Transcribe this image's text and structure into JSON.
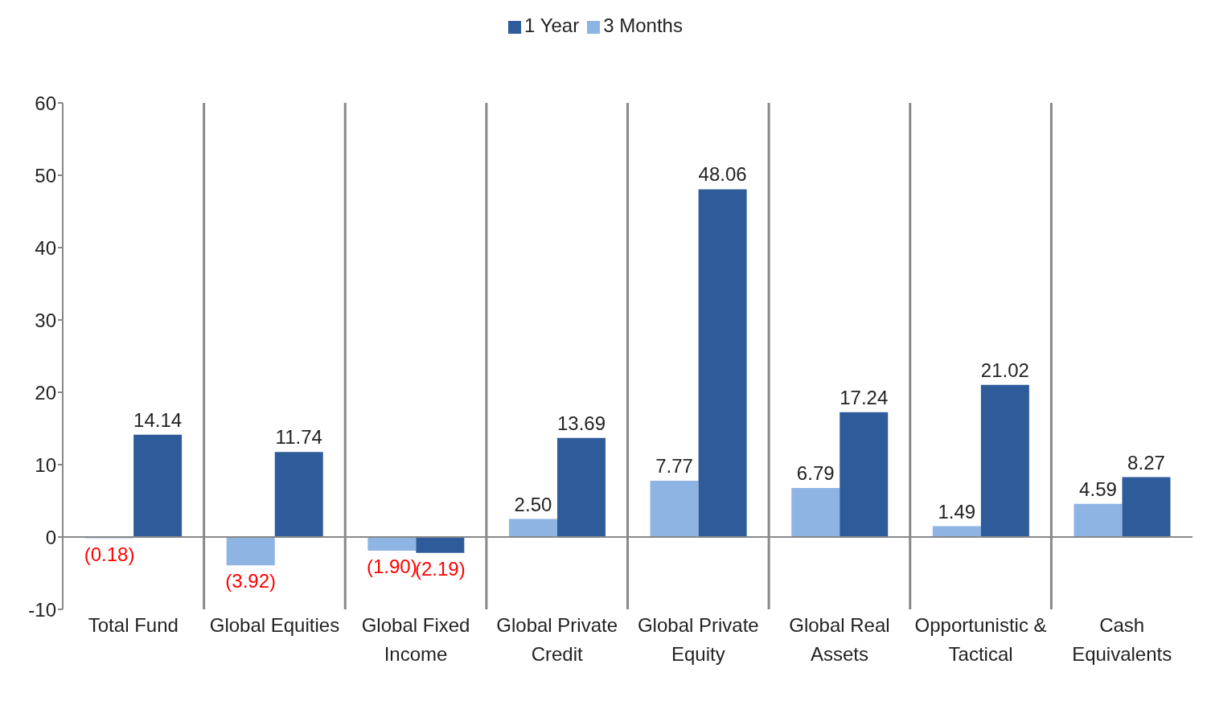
{
  "chart_data": {
    "type": "bar",
    "categories": [
      "Total Fund",
      "Global Equities",
      "Global Fixed Income",
      "Global Private Credit",
      "Global Private Equity",
      "Global Real Assets",
      "Opportunistic & Tactical",
      "Cash Equivalents"
    ],
    "series": [
      {
        "name": "3 Months",
        "color": "#8db4e2",
        "values": [
          -0.18,
          -3.92,
          -1.9,
          2.5,
          7.77,
          6.79,
          1.49,
          4.59
        ],
        "value_labels": [
          "(0.18)",
          "(3.92)",
          "(1.90)",
          "2.50",
          "7.77",
          "6.79",
          "1.49",
          "4.59"
        ]
      },
      {
        "name": "1 Year",
        "color": "#2e5c9a",
        "values": [
          14.14,
          11.74,
          -2.19,
          13.69,
          48.06,
          17.24,
          21.02,
          8.27
        ],
        "value_labels": [
          "14.14",
          "11.74",
          "(2.19)",
          "13.69",
          "48.06",
          "17.24",
          "21.02",
          "8.27"
        ]
      }
    ],
    "ylim": [
      -10,
      60
    ],
    "yticks": [
      -10,
      0,
      10,
      20,
      30,
      40,
      50,
      60
    ],
    "grid": "x",
    "legend": "top"
  }
}
